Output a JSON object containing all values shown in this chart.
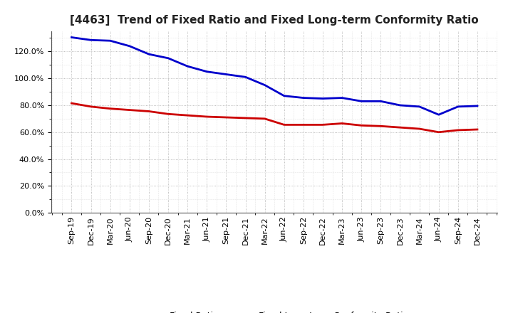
{
  "title": "[4463]  Trend of Fixed Ratio and Fixed Long-term Conformity Ratio",
  "x_labels": [
    "Sep-19",
    "Dec-19",
    "Mar-20",
    "Jun-20",
    "Sep-20",
    "Dec-20",
    "Mar-21",
    "Jun-21",
    "Sep-21",
    "Dec-21",
    "Mar-22",
    "Jun-22",
    "Sep-22",
    "Dec-22",
    "Mar-23",
    "Jun-23",
    "Sep-23",
    "Dec-23",
    "Mar-24",
    "Jun-24",
    "Sep-24",
    "Dec-24"
  ],
  "fixed_ratio": [
    130.5,
    128.5,
    128.0,
    124.0,
    118.0,
    115.0,
    109.0,
    105.0,
    103.0,
    101.0,
    95.0,
    87.0,
    85.5,
    85.0,
    85.5,
    83.0,
    83.0,
    80.0,
    79.0,
    73.0,
    79.0,
    79.5
  ],
  "fixed_lt_ratio": [
    81.5,
    79.0,
    77.5,
    76.5,
    75.5,
    73.5,
    72.5,
    71.5,
    71.0,
    70.5,
    70.0,
    65.5,
    65.5,
    65.5,
    66.5,
    65.0,
    64.5,
    63.5,
    62.5,
    60.0,
    61.5,
    62.0
  ],
  "fixed_ratio_color": "#0000cc",
  "fixed_lt_ratio_color": "#cc0000",
  "line_width": 2.0,
  "ylim": [
    0,
    135
  ],
  "yticks": [
    0,
    20,
    40,
    60,
    80,
    100,
    120
  ],
  "background_color": "#ffffff",
  "plot_bg_color": "#ffffff",
  "grid_color": "#aaaaaa",
  "title_fontsize": 11,
  "legend_fontsize": 9,
  "tick_fontsize": 8,
  "legend_line1": "Fixed Ratio",
  "legend_line2": "Fixed Long-term Conformity Ratio"
}
